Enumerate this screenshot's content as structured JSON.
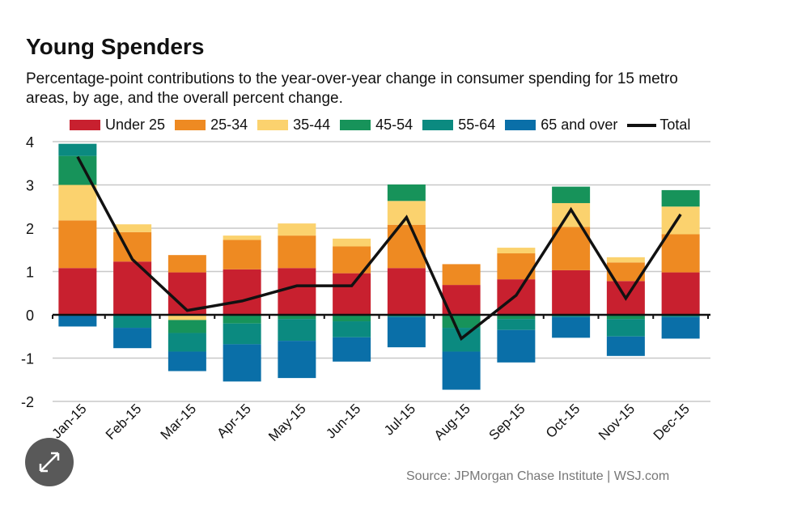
{
  "chart_data": {
    "type": "bar",
    "stacked": true,
    "title": "Young Spenders",
    "subtitle": "Percentage-point contributions to the year-over-year change in consumer spending for 15 metro areas, by age, and the overall percent change.",
    "categories": [
      "Jan-15",
      "Feb-15",
      "Mar-15",
      "Apr-15",
      "May-15",
      "Jun-15",
      "Jul-15",
      "Aug-15",
      "Sep-15",
      "Oct-15",
      "Nov-15",
      "Dec-15"
    ],
    "series": [
      {
        "name": "Under 25",
        "color": "#c8202f",
        "values": [
          1.08,
          1.23,
          0.98,
          1.05,
          1.08,
          0.96,
          1.08,
          0.69,
          0.82,
          1.03,
          0.78,
          0.98
        ]
      },
      {
        "name": "25-34",
        "color": "#ee8a22",
        "values": [
          1.1,
          0.68,
          0.4,
          0.68,
          0.75,
          0.62,
          1.0,
          0.48,
          0.6,
          1.0,
          0.43,
          0.88
        ]
      },
      {
        "name": "35-44",
        "color": "#fbd26e",
        "values": [
          0.82,
          0.18,
          -0.12,
          0.1,
          0.28,
          0.18,
          0.55,
          0,
          0.13,
          0.55,
          0.12,
          0.64
        ]
      },
      {
        "name": "45-54",
        "color": "#17935a",
        "values": [
          0.67,
          0,
          -0.3,
          -0.2,
          -0.1,
          -0.15,
          0.38,
          -0.3,
          -0.1,
          0.38,
          -0.1,
          0.38
        ]
      },
      {
        "name": "55-64",
        "color": "#0b8a80",
        "values": [
          0.28,
          -0.3,
          -0.43,
          -0.48,
          -0.5,
          -0.37,
          -0.05,
          -0.55,
          -0.25,
          -0.05,
          -0.4,
          -0.05
        ]
      },
      {
        "name": "65 and over",
        "color": "#0a6fa8",
        "values": [
          -0.27,
          -0.47,
          -0.45,
          -0.86,
          -0.86,
          -0.56,
          -0.7,
          -0.88,
          -0.75,
          -0.48,
          -0.45,
          -0.5
        ]
      }
    ],
    "line": {
      "name": "Total",
      "color": "#111111",
      "values": [
        3.65,
        1.28,
        0.1,
        0.32,
        0.67,
        0.67,
        2.25,
        -0.55,
        0.45,
        2.43,
        0.38,
        2.32
      ]
    },
    "ylim": [
      -2,
      4
    ],
    "yticks": [
      "4",
      "3",
      "2",
      "1",
      "0",
      "-1",
      "-2"
    ],
    "grid": true,
    "legend": "top",
    "xlabel": "",
    "ylabel": ""
  },
  "source": "Source: JPMorgan Chase Institute  |  WSJ.com"
}
